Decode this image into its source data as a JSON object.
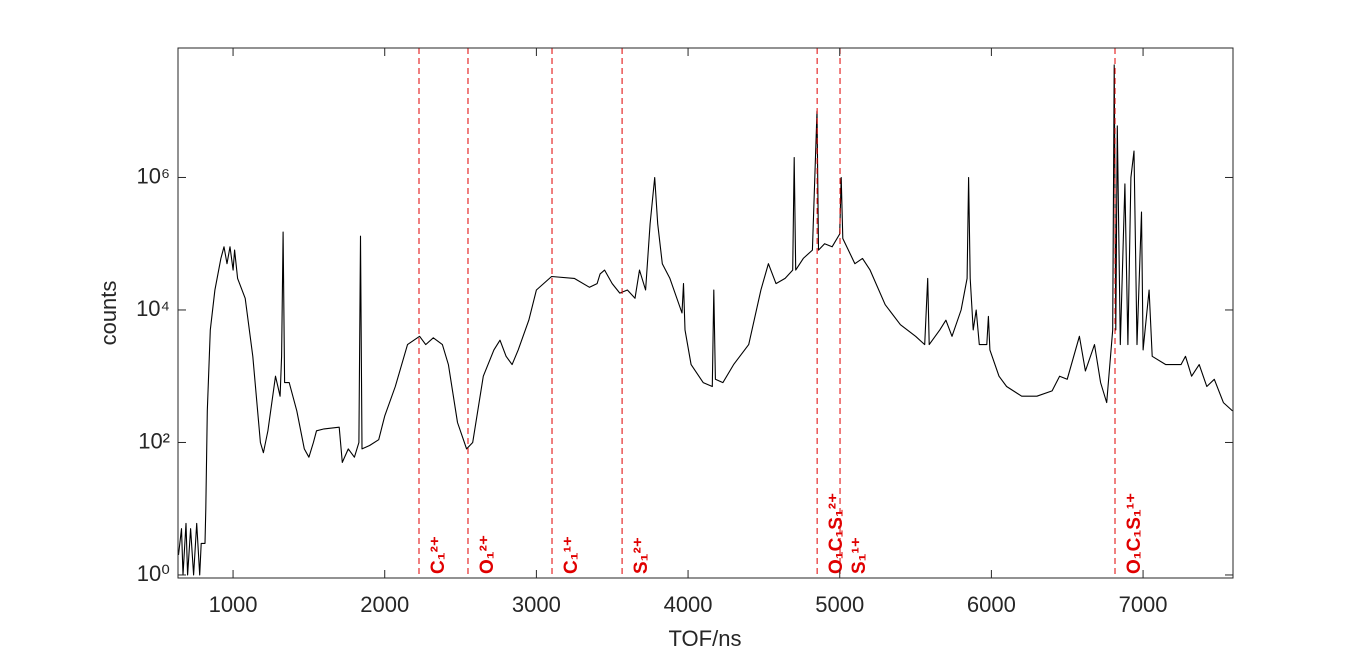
{
  "chart_data": {
    "type": "line",
    "xlabel": "TOF/ns",
    "ylabel": "counts",
    "xlim": [
      637,
      7593
    ],
    "ylim": [
      0.9,
      90000000
    ],
    "log_y": true,
    "xticks": [
      1000,
      2000,
      3000,
      4000,
      5000,
      6000,
      7000
    ],
    "yticks": [
      {
        "value": 1,
        "label": "10⁰"
      },
      {
        "value": 100,
        "label": "10²"
      },
      {
        "value": 10000,
        "label": "10⁴"
      },
      {
        "value": 1000000,
        "label": "10⁶"
      }
    ],
    "color": "#000000",
    "x": [
      640,
      660,
      670,
      690,
      700,
      720,
      740,
      760,
      780,
      790,
      815,
      820,
      830,
      850,
      880,
      920,
      940,
      960,
      980,
      1000,
      1010,
      1030,
      1080,
      1130,
      1180,
      1200,
      1230,
      1280,
      1310,
      1320,
      1330,
      1340,
      1370,
      1420,
      1470,
      1500,
      1530,
      1550,
      1600,
      1700,
      1720,
      1760,
      1800,
      1830,
      1840,
      1850,
      1900,
      1960,
      2000,
      2070,
      2150,
      2230,
      2270,
      2320,
      2380,
      2420,
      2480,
      2540,
      2580,
      2650,
      2720,
      2760,
      2800,
      2840,
      2880,
      2950,
      3000,
      3100,
      3250,
      3350,
      3400,
      3420,
      3450,
      3500,
      3550,
      3600,
      3650,
      3680,
      3720,
      3750,
      3780,
      3800,
      3830,
      3880,
      3960,
      3970,
      3980,
      4020,
      4100,
      4160,
      4170,
      4180,
      4230,
      4300,
      4400,
      4480,
      4530,
      4580,
      4640,
      4690,
      4700,
      4710,
      4760,
      4820,
      4850,
      4860,
      4900,
      4950,
      5000,
      5010,
      5020,
      5100,
      5150,
      5200,
      5300,
      5400,
      5500,
      5560,
      5580,
      5590,
      5660,
      5700,
      5740,
      5800,
      5840,
      5850,
      5860,
      5880,
      5900,
      5920,
      5970,
      5980,
      5990,
      6050,
      6100,
      6200,
      6300,
      6400,
      6450,
      6500,
      6580,
      6620,
      6680,
      6720,
      6760,
      6800,
      6810,
      6820,
      6830,
      6850,
      6880,
      6900,
      6920,
      6940,
      6960,
      6990,
      7000,
      7040,
      7060,
      7150,
      7250,
      7280,
      7320,
      7370,
      7420,
      7470,
      7530,
      7590
    ],
    "values": [
      2,
      5,
      1,
      6,
      1,
      5,
      1,
      6,
      1,
      3,
      3,
      10,
      300,
      5000,
      20000,
      60000,
      90000,
      50000,
      90000,
      40000,
      80000,
      30000,
      15000,
      2000,
      100,
      70,
      150,
      1000,
      500,
      2000,
      150000,
      800,
      800,
      300,
      80,
      60,
      100,
      150,
      160,
      170,
      50,
      80,
      60,
      100,
      130000,
      80,
      90,
      110,
      250,
      700,
      3000,
      4000,
      3000,
      3800,
      3000,
      1500,
      200,
      80,
      100,
      1000,
      2500,
      3500,
      2000,
      1500,
      2500,
      7000,
      20000,
      32000,
      30000,
      22000,
      25000,
      35000,
      40000,
      25000,
      18000,
      20000,
      15000,
      40000,
      20000,
      200000,
      1000000,
      200000,
      50000,
      30000,
      9000,
      25000,
      5000,
      1500,
      800,
      700,
      20000,
      900,
      800,
      1500,
      3000,
      20000,
      50000,
      25000,
      30000,
      40000,
      2000000,
      40000,
      60000,
      80000,
      10000000,
      80000,
      100000,
      90000,
      140000,
      1000000,
      120000,
      50000,
      60000,
      40000,
      12000,
      6000,
      4000,
      3000,
      30000,
      3000,
      5000,
      7000,
      4000,
      10000,
      30000,
      1000000,
      30000,
      5000,
      10000,
      3000,
      3000,
      8000,
      2500,
      1000,
      700,
      500,
      500,
      600,
      1000,
      900,
      4000,
      1200,
      3000,
      800,
      400,
      5000,
      50000000,
      5000,
      6000000,
      3000,
      800000,
      3000,
      1000000,
      2500000,
      3000,
      300000,
      2500,
      20000,
      2000,
      1500,
      1500,
      2000,
      1000,
      1500,
      700,
      900,
      400,
      300
    ],
    "annotation_color": "#e00000",
    "annotations": [
      {
        "x": 2226,
        "label": "C₁²⁺"
      },
      {
        "x": 2549,
        "label": "O₁²⁺"
      },
      {
        "x": 3103,
        "label": "C₁¹⁺"
      },
      {
        "x": 3565,
        "label": "S₁²⁺"
      },
      {
        "x": 4851,
        "label": "O₁C₁S₁²⁺"
      },
      {
        "x": 5002,
        "label": "S₁¹⁺"
      },
      {
        "x": 6815,
        "label": "O₁C₁S₁¹⁺"
      }
    ]
  }
}
